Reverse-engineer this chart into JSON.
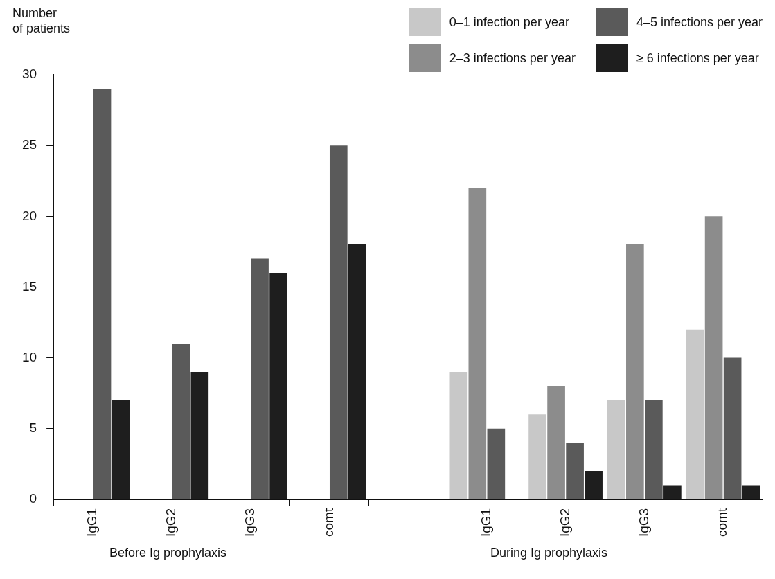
{
  "chart_data": {
    "type": "bar",
    "ylabel": "Number\nof patients",
    "categories": [
      "IgG1",
      "IgG2",
      "IgG3",
      "comt",
      null,
      "IgG1",
      "IgG2",
      "IgG3",
      "comt"
    ],
    "series": [
      {
        "name": "0–1 infection per year",
        "color": "#c8c8c8",
        "values": [
          null,
          null,
          null,
          null,
          null,
          9,
          6,
          7,
          12
        ]
      },
      {
        "name": "2–3 infections per year",
        "color": "#8c8c8c",
        "values": [
          null,
          null,
          null,
          null,
          null,
          22,
          8,
          18,
          20
        ]
      },
      {
        "name": "4–5 infections per year",
        "color": "#5a5a5a",
        "values": [
          29,
          11,
          17,
          25,
          null,
          5,
          4,
          7,
          10
        ]
      },
      {
        "name": "≥ 6 infections per year",
        "color": "#1e1e1e",
        "values": [
          7,
          9,
          16,
          18,
          null,
          null,
          2,
          1,
          1
        ]
      }
    ],
    "ylim": [
      0,
      30
    ],
    "yticks": [
      0,
      5,
      10,
      15,
      20,
      25,
      30
    ],
    "grid": false,
    "legend": "top right",
    "annotations": [
      "Before Ig prophylaxis",
      "During Ig prophylaxis"
    ]
  }
}
